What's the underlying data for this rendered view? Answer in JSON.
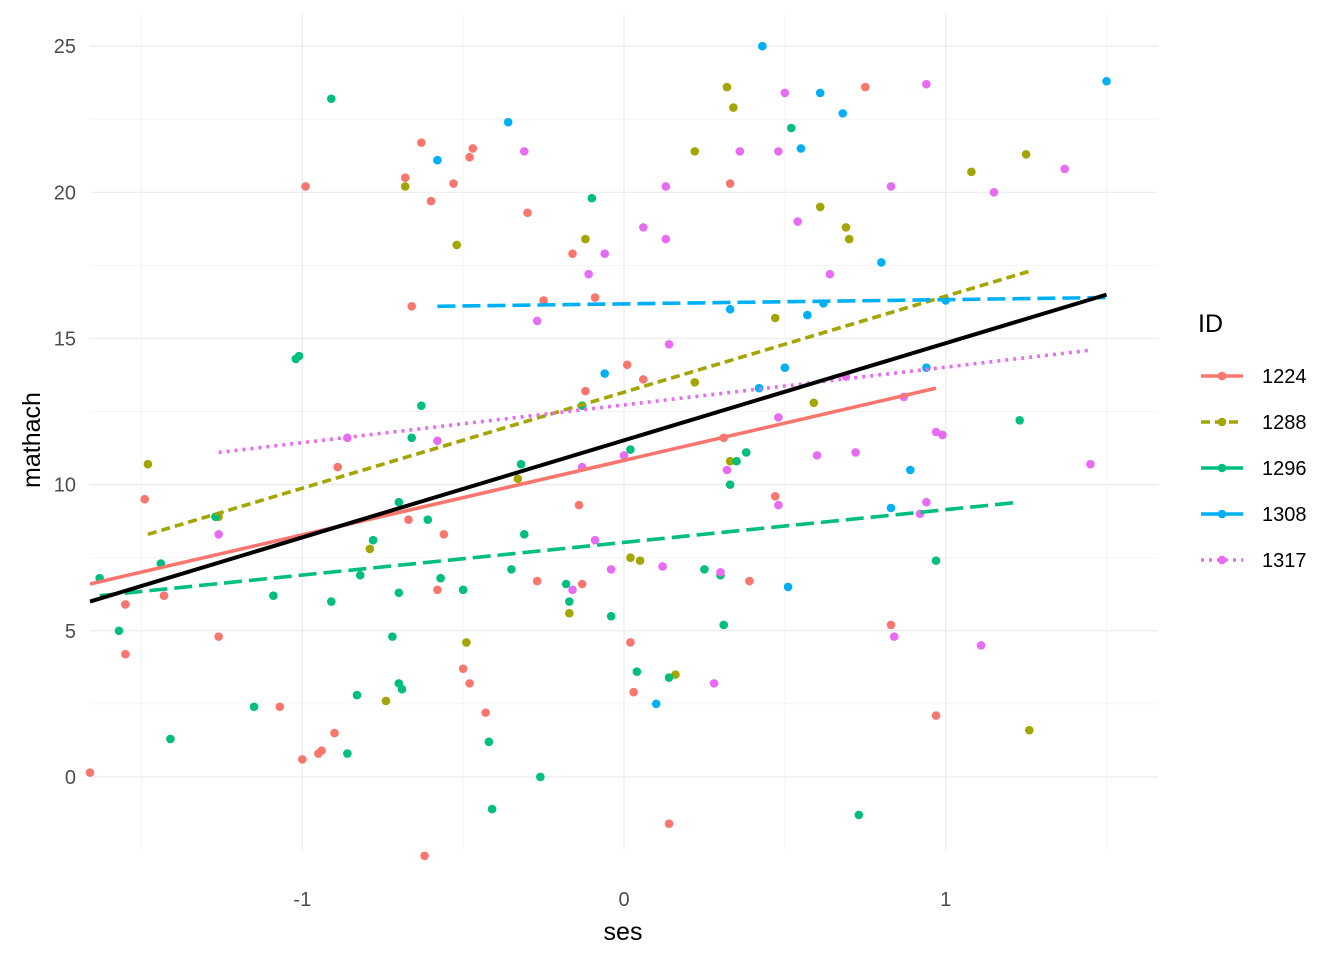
{
  "chart_data": {
    "type": "scatter",
    "xlabel": "ses",
    "ylabel": "mathach",
    "xlim": [
      -1.66,
      1.66
    ],
    "ylim": [
      -2.5,
      26.1
    ],
    "x_ticks": [
      -1,
      0,
      1
    ],
    "x_tick_labels": [
      "-1",
      "0",
      "1"
    ],
    "y_ticks": [
      0,
      5,
      10,
      15,
      20,
      25
    ],
    "y_tick_labels": [
      "0",
      "5",
      "10",
      "15",
      "20",
      "25"
    ],
    "grid": true,
    "legend": {
      "title": "ID",
      "position": "right",
      "entries": [
        {
          "label": "1224",
          "color": "#F8766D",
          "dash": "solid"
        },
        {
          "label": "1288",
          "color": "#A3A500",
          "dash": "short-dash"
        },
        {
          "label": "1296",
          "color": "#00BF7D",
          "dash": "long-dash"
        },
        {
          "label": "1308",
          "color": "#00B0F6",
          "dash": "long-dash"
        },
        {
          "label": "1317",
          "color": "#E76BF3",
          "dash": "dotted"
        }
      ]
    },
    "series": [
      {
        "name": "1224",
        "color": "#F8766D",
        "points": [
          [
            -1.66,
            0.15
          ],
          [
            -1.55,
            5.9
          ],
          [
            -1.55,
            4.2
          ],
          [
            -1.49,
            9.5
          ],
          [
            -1.43,
            6.2
          ],
          [
            -1.26,
            4.8
          ],
          [
            -1.07,
            2.4
          ],
          [
            -1.0,
            0.6
          ],
          [
            -0.99,
            20.2
          ],
          [
            -0.95,
            0.8
          ],
          [
            -0.94,
            0.9
          ],
          [
            -0.9,
            1.5
          ],
          [
            -0.89,
            10.6
          ],
          [
            -0.68,
            20.5
          ],
          [
            -0.67,
            8.8
          ],
          [
            -0.66,
            16.1
          ],
          [
            -0.63,
            21.7
          ],
          [
            -0.62,
            -2.7
          ],
          [
            -0.6,
            19.7
          ],
          [
            -0.58,
            6.4
          ],
          [
            -0.56,
            8.3
          ],
          [
            -0.53,
            20.3
          ],
          [
            -0.5,
            3.7
          ],
          [
            -0.48,
            21.2
          ],
          [
            -0.48,
            3.2
          ],
          [
            -0.47,
            21.5
          ],
          [
            -0.43,
            2.2
          ],
          [
            -0.3,
            19.3
          ],
          [
            -0.27,
            6.7
          ],
          [
            -0.25,
            16.3
          ],
          [
            -0.16,
            17.9
          ],
          [
            -0.14,
            9.3
          ],
          [
            -0.13,
            6.6
          ],
          [
            -0.12,
            13.2
          ],
          [
            -0.09,
            16.4
          ],
          [
            0.01,
            14.1
          ],
          [
            0.02,
            4.6
          ],
          [
            0.03,
            2.9
          ],
          [
            0.06,
            13.6
          ],
          [
            0.14,
            -1.6
          ],
          [
            0.31,
            11.6
          ],
          [
            0.33,
            20.3
          ],
          [
            0.39,
            6.7
          ],
          [
            0.47,
            9.6
          ],
          [
            0.75,
            23.6
          ],
          [
            0.83,
            5.2
          ],
          [
            0.97,
            2.1
          ]
        ]
      },
      {
        "name": "1288",
        "color": "#A3A500",
        "points": [
          [
            -1.48,
            10.7
          ],
          [
            -1.26,
            8.9
          ],
          [
            -0.79,
            7.8
          ],
          [
            -0.74,
            2.6
          ],
          [
            -0.68,
            20.2
          ],
          [
            -0.52,
            18.2
          ],
          [
            -0.49,
            4.6
          ],
          [
            -0.33,
            10.2
          ],
          [
            -0.17,
            5.6
          ],
          [
            -0.12,
            18.4
          ],
          [
            0.02,
            7.5
          ],
          [
            0.05,
            7.4
          ],
          [
            0.16,
            3.5
          ],
          [
            0.22,
            13.5
          ],
          [
            0.22,
            21.4
          ],
          [
            0.32,
            23.6
          ],
          [
            0.33,
            10.8
          ],
          [
            0.34,
            22.9
          ],
          [
            0.47,
            15.7
          ],
          [
            0.59,
            12.8
          ],
          [
            0.61,
            19.5
          ],
          [
            0.69,
            18.8
          ],
          [
            0.7,
            18.4
          ],
          [
            1.08,
            20.7
          ],
          [
            1.25,
            21.3
          ],
          [
            1.26,
            1.6
          ]
        ]
      },
      {
        "name": "1296",
        "color": "#00BF7D",
        "points": [
          [
            -1.63,
            6.8
          ],
          [
            -1.57,
            5.0
          ],
          [
            -1.44,
            7.3
          ],
          [
            -1.41,
            1.3
          ],
          [
            -1.27,
            8.9
          ],
          [
            -1.15,
            2.4
          ],
          [
            -1.09,
            6.2
          ],
          [
            -1.02,
            14.3
          ],
          [
            -1.01,
            14.4
          ],
          [
            -0.91,
            6.0
          ],
          [
            -0.91,
            23.2
          ],
          [
            -0.86,
            0.8
          ],
          [
            -0.82,
            6.9
          ],
          [
            -0.83,
            2.8
          ],
          [
            -0.78,
            8.1
          ],
          [
            -0.72,
            4.8
          ],
          [
            -0.7,
            9.4
          ],
          [
            -0.7,
            6.3
          ],
          [
            -0.7,
            3.2
          ],
          [
            -0.69,
            3.0
          ],
          [
            -0.66,
            11.6
          ],
          [
            -0.63,
            12.7
          ],
          [
            -0.61,
            8.8
          ],
          [
            -0.57,
            6.8
          ],
          [
            -0.5,
            6.4
          ],
          [
            -0.42,
            1.2
          ],
          [
            -0.41,
            -1.1
          ],
          [
            -0.35,
            7.1
          ],
          [
            -0.31,
            8.3
          ],
          [
            -0.32,
            10.7
          ],
          [
            -0.26,
            0.0
          ],
          [
            -0.18,
            6.6
          ],
          [
            -0.17,
            6.0
          ],
          [
            -0.1,
            19.8
          ],
          [
            -0.13,
            12.7
          ],
          [
            -0.04,
            5.5
          ],
          [
            0.02,
            11.2
          ],
          [
            0.04,
            3.6
          ],
          [
            0.14,
            3.4
          ],
          [
            0.25,
            7.1
          ],
          [
            0.3,
            6.9
          ],
          [
            0.31,
            5.2
          ],
          [
            0.33,
            10.0
          ],
          [
            0.35,
            10.8
          ],
          [
            0.38,
            11.1
          ],
          [
            0.52,
            22.2
          ],
          [
            0.73,
            -1.3
          ],
          [
            0.97,
            7.4
          ],
          [
            1.23,
            12.2
          ]
        ]
      },
      {
        "name": "1308",
        "color": "#00B0F6",
        "points": [
          [
            -0.58,
            21.1
          ],
          [
            -0.36,
            22.4
          ],
          [
            -0.06,
            13.8
          ],
          [
            0.1,
            2.5
          ],
          [
            0.33,
            16.0
          ],
          [
            0.42,
            13.3
          ],
          [
            0.43,
            25.0
          ],
          [
            0.5,
            14.0
          ],
          [
            0.51,
            6.5
          ],
          [
            0.55,
            21.5
          ],
          [
            0.57,
            15.8
          ],
          [
            0.61,
            23.4
          ],
          [
            0.62,
            16.2
          ],
          [
            0.68,
            22.7
          ],
          [
            0.8,
            17.6
          ],
          [
            0.83,
            9.2
          ],
          [
            0.89,
            10.5
          ],
          [
            0.94,
            14.0
          ],
          [
            1.0,
            16.3
          ],
          [
            1.5,
            23.8
          ]
        ]
      },
      {
        "name": "1317",
        "color": "#E76BF3",
        "points": [
          [
            -1.26,
            8.3
          ],
          [
            -0.86,
            11.6
          ],
          [
            -0.58,
            11.5
          ],
          [
            -0.31,
            21.4
          ],
          [
            -0.27,
            15.6
          ],
          [
            -0.16,
            6.4
          ],
          [
            -0.13,
            10.6
          ],
          [
            -0.11,
            17.2
          ],
          [
            -0.09,
            8.1
          ],
          [
            -0.06,
            17.9
          ],
          [
            -0.04,
            7.1
          ],
          [
            0.0,
            11.0
          ],
          [
            0.06,
            18.8
          ],
          [
            0.14,
            14.8
          ],
          [
            0.12,
            7.2
          ],
          [
            0.13,
            20.2
          ],
          [
            0.13,
            18.4
          ],
          [
            0.28,
            3.2
          ],
          [
            0.3,
            7.0
          ],
          [
            0.32,
            10.5
          ],
          [
            0.36,
            21.4
          ],
          [
            0.48,
            9.3
          ],
          [
            0.48,
            12.3
          ],
          [
            0.48,
            21.4
          ],
          [
            0.5,
            23.4
          ],
          [
            0.54,
            19.0
          ],
          [
            0.6,
            11.0
          ],
          [
            0.64,
            17.2
          ],
          [
            0.69,
            13.7
          ],
          [
            0.72,
            11.1
          ],
          [
            0.83,
            20.2
          ],
          [
            0.84,
            4.8
          ],
          [
            0.87,
            13.0
          ],
          [
            0.92,
            9.0
          ],
          [
            0.94,
            9.4
          ],
          [
            0.94,
            23.7
          ],
          [
            0.97,
            11.8
          ],
          [
            0.99,
            11.7
          ],
          [
            1.11,
            4.5
          ],
          [
            1.15,
            20.0
          ],
          [
            1.37,
            20.8
          ],
          [
            1.45,
            10.7
          ]
        ]
      }
    ],
    "fit_lines": [
      {
        "name": "1224",
        "color": "#F8766D",
        "dash": "solid",
        "x": [
          -1.66,
          0.97
        ],
        "y": [
          6.6,
          13.3
        ]
      },
      {
        "name": "1288",
        "color": "#A3A500",
        "dash": "short-dash",
        "x": [
          -1.48,
          1.26
        ],
        "y": [
          8.3,
          17.3
        ]
      },
      {
        "name": "1296",
        "color": "#00BF7D",
        "dash": "long-dash",
        "x": [
          -1.63,
          1.23
        ],
        "y": [
          6.2,
          9.4
        ]
      },
      {
        "name": "1308",
        "color": "#00B0F6",
        "dash": "long-dash",
        "x": [
          -0.58,
          1.5
        ],
        "y": [
          16.1,
          16.4
        ]
      },
      {
        "name": "1317",
        "color": "#E76BF3",
        "dash": "dotted",
        "x": [
          -1.26,
          1.45
        ],
        "y": [
          11.1,
          14.6
        ]
      },
      {
        "name": "",
        "color": "#000000",
        "dash": "solid",
        "x": [
          -1.66,
          1.5
        ],
        "y": [
          6.0,
          16.5
        ]
      }
    ]
  }
}
